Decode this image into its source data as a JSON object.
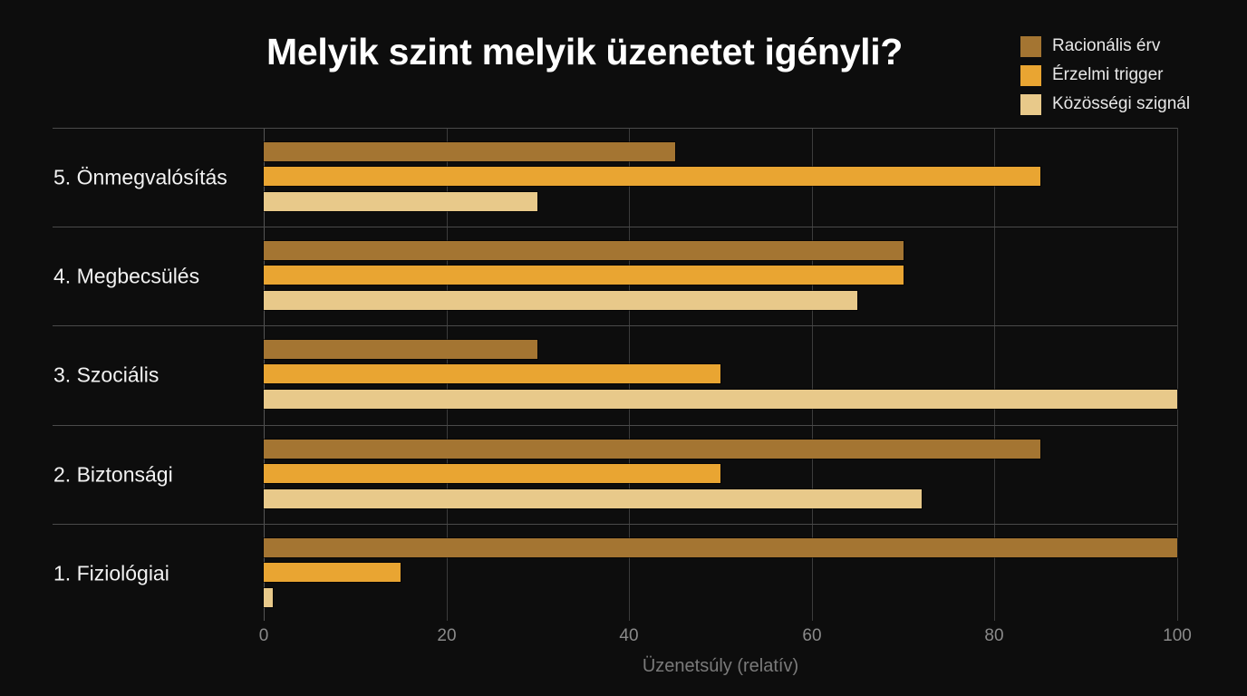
{
  "chart_data": {
    "type": "bar",
    "orientation": "horizontal",
    "title": "Melyik szint melyik üzenetet igényli?",
    "xlabel": "Üzenetsúly (relatív)",
    "ylabel": "",
    "xlim": [
      0,
      100
    ],
    "xticks": [
      "0",
      "20",
      "40",
      "60",
      "80",
      "100"
    ],
    "grid": true,
    "legend_position": "top-right",
    "categories": [
      "5. Önmegvalósítás",
      "4. Megbecsülés",
      "3. Szociális",
      "2. Biztonsági",
      "1. Fiziológiai"
    ],
    "series": [
      {
        "name": "Racionális érv",
        "color": "#a47532",
        "values": [
          45,
          70,
          30,
          85,
          100
        ]
      },
      {
        "name": "Érzelmi trigger",
        "color": "#e9a532",
        "values": [
          85,
          70,
          50,
          50,
          15
        ]
      },
      {
        "name": "Közösségi szignál",
        "color": "#e8c98a",
        "values": [
          30,
          65,
          100,
          72,
          1
        ]
      }
    ]
  },
  "title": "Melyik szint melyik üzenetet igényli?",
  "legend": [
    {
      "label": "Racionális érv",
      "color": "#a47532"
    },
    {
      "label": "Érzelmi trigger",
      "color": "#e9a532"
    },
    {
      "label": "Közösségi szignál",
      "color": "#e8c98a"
    }
  ],
  "categories": [
    {
      "label": "5. Önmegvalósítás"
    },
    {
      "label": "4. Megbecsülés"
    },
    {
      "label": "3. Szociális"
    },
    {
      "label": "2. Biztonsági"
    },
    {
      "label": "1. Fiziológiai"
    }
  ],
  "xticks": [
    "0",
    "20",
    "40",
    "60",
    "80",
    "100"
  ],
  "xlabel": "Üzenetsúly (relatív)"
}
